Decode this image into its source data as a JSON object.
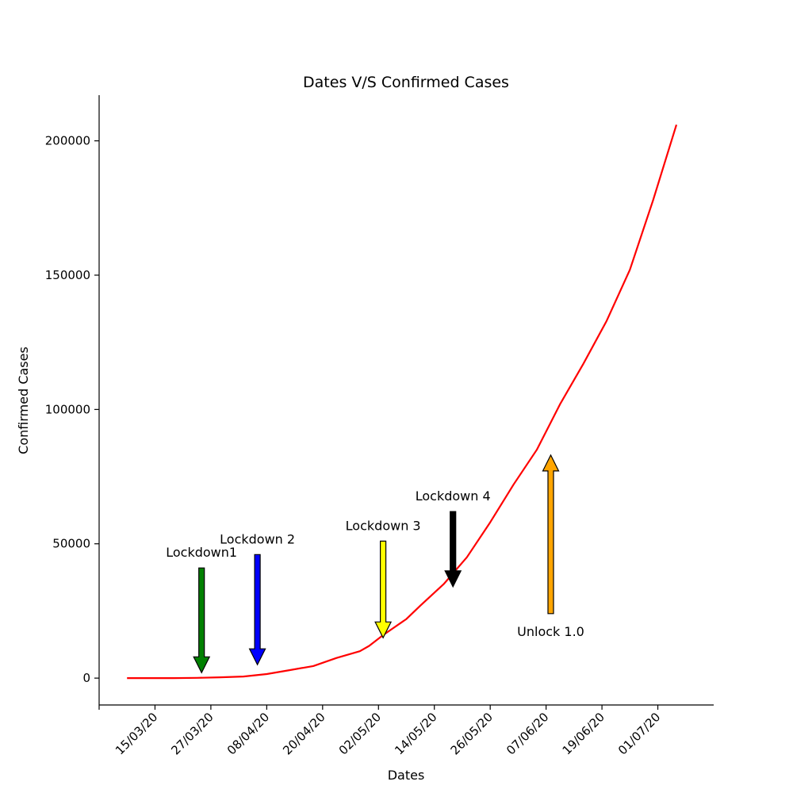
{
  "chart_data": {
    "type": "line",
    "title": "Dates V/S Confirmed Cases",
    "xlabel": "Dates",
    "ylabel": "Confirmed Cases",
    "x_ticks": [
      "15/03/20",
      "27/03/20",
      "08/04/20",
      "20/04/20",
      "02/05/20",
      "14/05/20",
      "26/05/20",
      "07/06/20",
      "19/06/20",
      "01/07/20"
    ],
    "y_ticks": [
      0,
      50000,
      100000,
      150000,
      200000
    ],
    "ylim": [
      -10000,
      217000
    ],
    "xlim": [
      "03/03/20",
      "13/07/20"
    ],
    "grid": false,
    "line_color": "#ff0000",
    "series": [
      {
        "x": [
          "09/03/20",
          "14/03/20",
          "19/03/20",
          "24/03/20",
          "29/03/20",
          "03/04/20",
          "08/04/20",
          "13/04/20",
          "18/04/20",
          "23/04/20",
          "28/04/20",
          "30/04/20",
          "03/05/20",
          "08/05/20",
          "11/05/20",
          "16/05/20",
          "21/05/20",
          "26/05/20",
          "31/05/20",
          "05/06/20",
          "10/06/20",
          "15/06/20",
          "20/06/20",
          "25/06/20",
          "30/06/20",
          "05/07/20"
        ],
        "values": [
          0,
          0,
          0,
          100,
          300,
          600,
          1500,
          3000,
          4500,
          7500,
          10000,
          12000,
          16000,
          22000,
          27000,
          35000,
          45000,
          58000,
          72000,
          85000,
          102000,
          117000,
          133000,
          152000,
          178000,
          206000
        ]
      }
    ],
    "annotations": [
      {
        "text": "Lockdown1",
        "date": "25/03/20",
        "from": 41000,
        "to": 2000,
        "color": "#008000"
      },
      {
        "text": "Lockdown 2",
        "date": "06/04/20",
        "from": 46000,
        "to": 5000,
        "color": "#0000ff"
      },
      {
        "text": "Lockdown 3",
        "date": "03/05/20",
        "from": 51000,
        "to": 15000,
        "color": "#ffff00"
      },
      {
        "text": "Lockdown 4",
        "date": "18/05/20",
        "from": 62000,
        "to": 34000,
        "color": "#000000"
      },
      {
        "text": "Unlock 1.0",
        "date": "08/06/20",
        "from": 24000,
        "to": 83000,
        "color": "#ffa500"
      }
    ]
  }
}
